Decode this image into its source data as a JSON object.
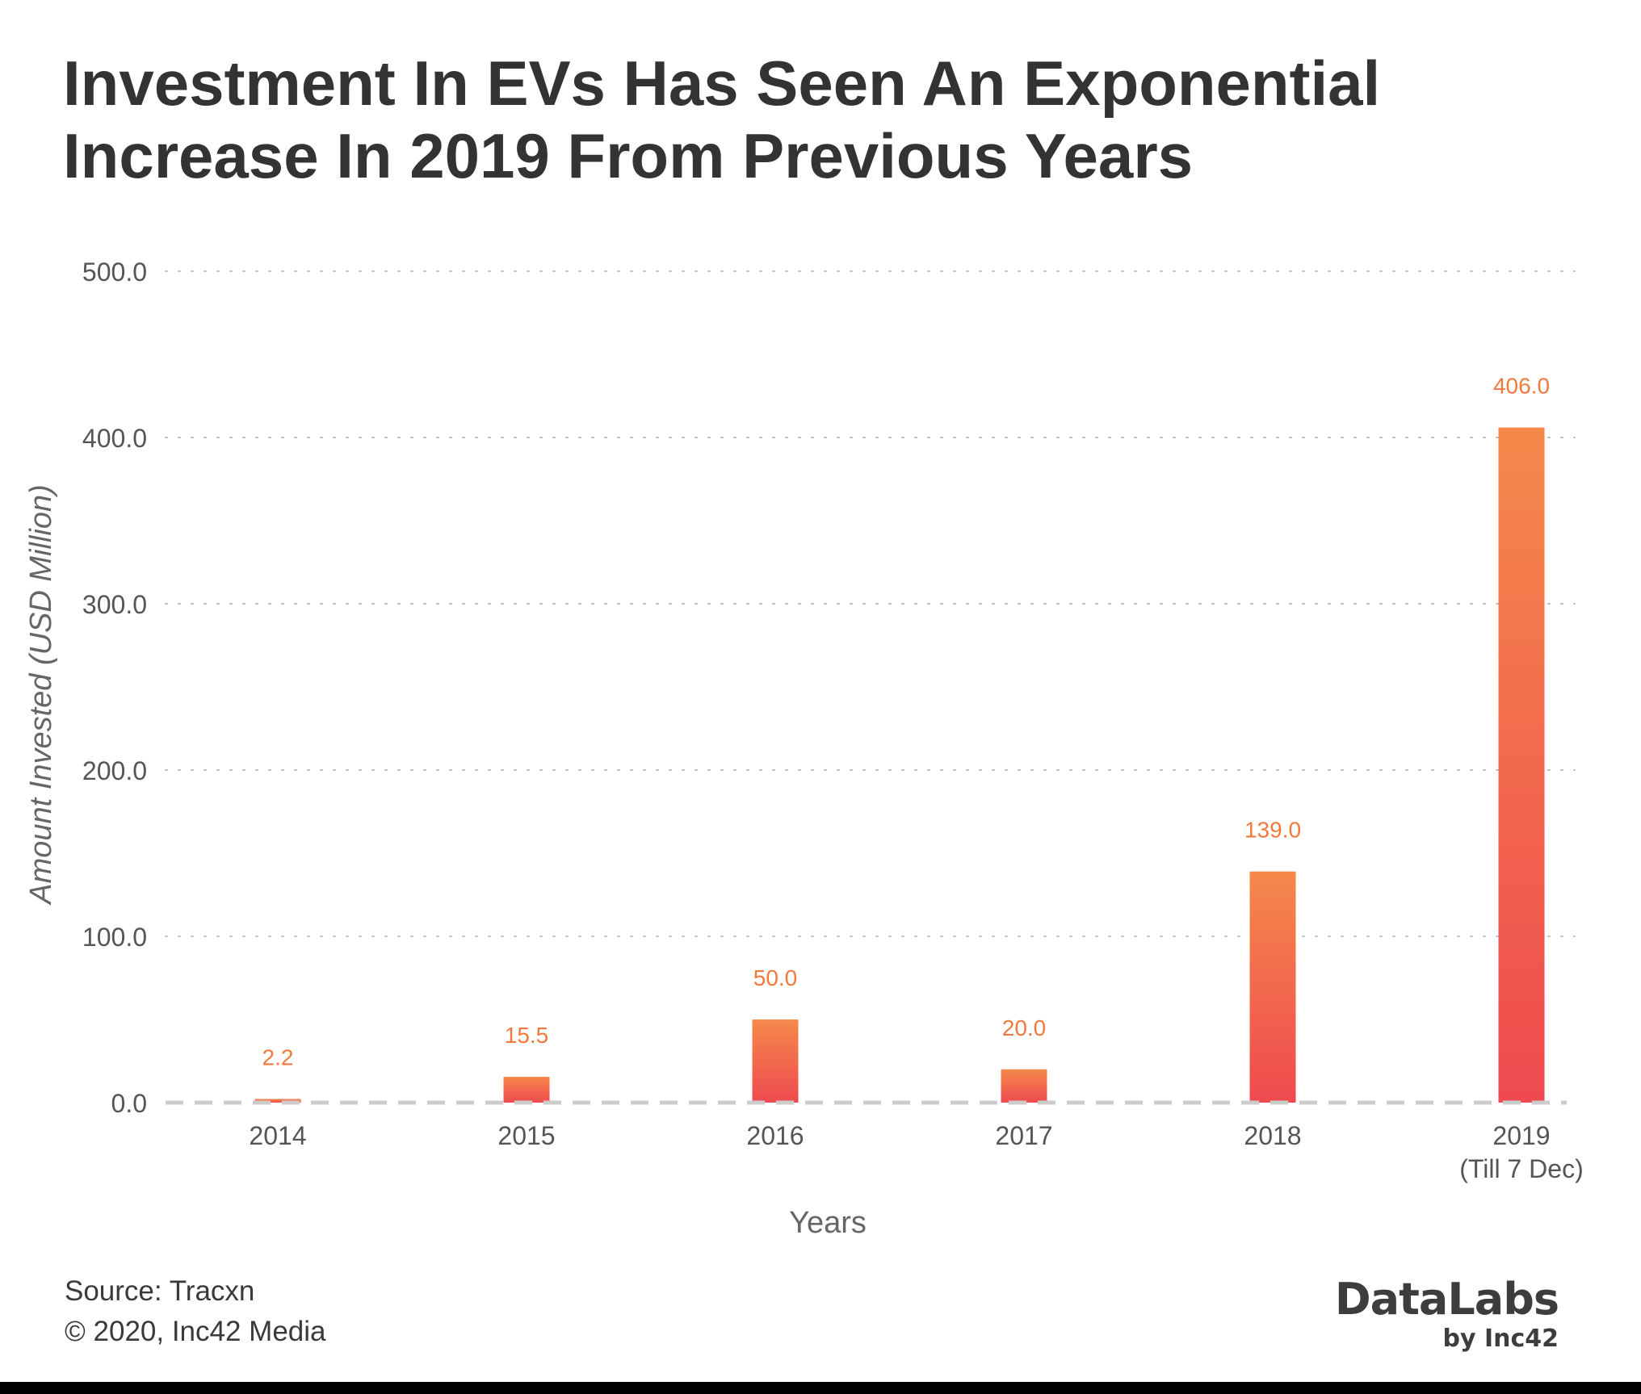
{
  "title": {
    "line1": "Investment In EVs Has Seen An Exponential",
    "line2": "Increase In 2019 From Previous Years"
  },
  "chart_data": {
    "type": "bar",
    "title": "Investment In EVs Has Seen An Exponential Increase In 2019 From Previous Years",
    "categories": [
      "2014",
      "2015",
      "2016",
      "2017",
      "2018",
      "2019"
    ],
    "category_sublabels": [
      "",
      "",
      "",
      "",
      "",
      "(Till 7 Dec)"
    ],
    "values": [
      2.2,
      15.5,
      50.0,
      20.0,
      139.0,
      406.0
    ],
    "value_labels": [
      "2.2",
      "15.5",
      "50.0",
      "20.0",
      "139.0",
      "406.0"
    ],
    "xlabel": "Years",
    "ylabel": "Amount Invested (USD Million)",
    "ylim": [
      0,
      500
    ],
    "yticks": [
      0,
      100,
      200,
      300,
      400,
      500
    ],
    "ytick_labels": [
      "0.0",
      "100.0",
      "200.0",
      "300.0",
      "400.0",
      "500.0"
    ],
    "grid": true,
    "colors": {
      "bar_top": "#f5894b",
      "bar_bottom": "#ef4a4f",
      "value_label": "#f07a3e",
      "tick": "#555555",
      "grid": "#bdbdbd",
      "baseline": "#cccccc"
    }
  },
  "footer": {
    "source": "Source: Tracxn",
    "copyright": "© 2020, Inc42 Media"
  },
  "logo": {
    "main": "DataLabs",
    "sub": "by Inc42"
  }
}
